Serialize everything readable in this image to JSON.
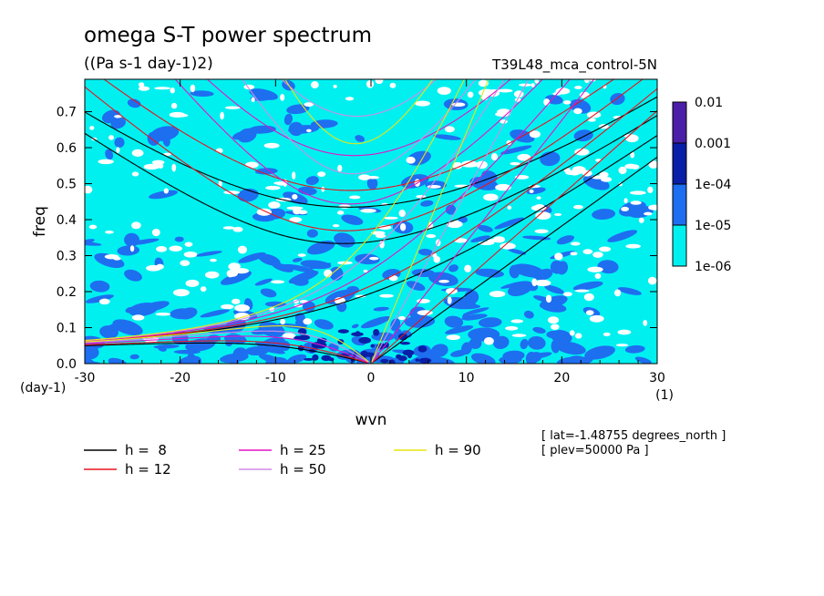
{
  "chart_data": {
    "type": "heatmap",
    "title": "omega S-T power spectrum",
    "subtitle": "((Pa s-1 day-1)2)",
    "run_label": "T39L48_mca_control-5N",
    "xlabel": "wvn",
    "ylabel": "freq",
    "x_unit": "(1)",
    "y_unit": "(day-1)",
    "xlim": [
      -30,
      30
    ],
    "ylim": [
      0,
      0.79
    ],
    "x_ticks": [
      -30,
      -20,
      -10,
      0,
      10,
      20,
      30
    ],
    "x_tick_labels": [
      "-30",
      "-20",
      "-10",
      "0",
      "10",
      "20",
      "30"
    ],
    "y_ticks": [
      0,
      0.1,
      0.2,
      0.3,
      0.4,
      0.5,
      0.6,
      0.7
    ],
    "y_tick_labels": [
      "0.0",
      "0.1",
      "0.2",
      "0.3",
      "0.4",
      "0.5",
      "0.6",
      "0.7"
    ],
    "colorbar": {
      "levels": [
        "0.01",
        "0.001",
        "1e-04",
        "1e-05",
        "1e-06"
      ],
      "colors": [
        "#4b1fa8",
        "#0a1fa8",
        "#1e6ef0",
        "#00f0f0"
      ]
    },
    "background_level_color": "#00f0f0",
    "meta_lines": [
      "[ lat=-1.48755 degrees_north ]",
      "[ plev=50000 Pa ]"
    ],
    "series": [
      {
        "name": "h =  8",
        "h": 8,
        "color": "#000000"
      },
      {
        "name": "h = 12",
        "h": 12,
        "color": "#e8141e"
      },
      {
        "name": "h = 25",
        "h": 25,
        "color": "#e614c8"
      },
      {
        "name": "h = 50",
        "h": 50,
        "color": "#d28ce6"
      },
      {
        "name": "h = 90",
        "h": 90,
        "color": "#e6e614"
      }
    ]
  }
}
